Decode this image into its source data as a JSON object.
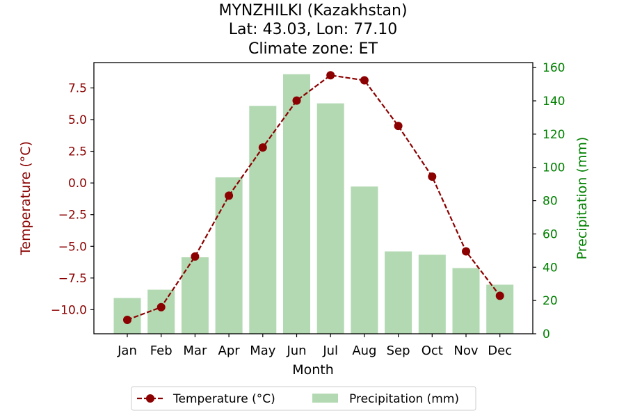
{
  "chart_data": {
    "type": "bar+line",
    "title_lines": [
      "MYNZHILKI (Kazakhstan)",
      "Lat: 43.03, Lon: 77.10",
      "Climate zone: ET"
    ],
    "xlabel": "Month",
    "categories": [
      "Jan",
      "Feb",
      "Mar",
      "Apr",
      "May",
      "Jun",
      "Jul",
      "Aug",
      "Sep",
      "Oct",
      "Nov",
      "Dec"
    ],
    "temperature": {
      "name": "Temperature (°C)",
      "axis_label": "Temperature (°C)",
      "color": "#8b0000",
      "values": [
        -10.8,
        -9.8,
        -5.8,
        -1.0,
        2.8,
        6.5,
        8.5,
        8.1,
        4.5,
        0.5,
        -5.4,
        -8.9
      ],
      "ylim": [
        -11.9,
        9.5
      ],
      "ticks": [
        -10.0,
        -7.5,
        -5.0,
        -2.5,
        0.0,
        2.5,
        5.0,
        7.5
      ],
      "tick_labels": [
        "−10.0",
        "−7.5",
        "−5.0",
        "−2.5",
        "0.0",
        "2.5",
        "5.0",
        "7.5"
      ]
    },
    "precipitation": {
      "name": "Precipitation (mm)",
      "axis_label": "Precipitation (mm)",
      "color": "#008000",
      "bar_color": "#b2d9b2",
      "values": [
        21.5,
        26.5,
        46,
        94,
        137,
        156,
        138.5,
        88.5,
        49.5,
        47.5,
        39.5,
        29.5
      ],
      "ylim": [
        0,
        163
      ],
      "ticks": [
        0,
        20,
        40,
        60,
        80,
        100,
        120,
        140,
        160
      ],
      "tick_labels": [
        "0",
        "20",
        "40",
        "60",
        "80",
        "100",
        "120",
        "140",
        "160"
      ]
    },
    "legend": {
      "position": "bottom-center",
      "items": [
        "Temperature (°C)",
        "Precipitation (mm)"
      ]
    }
  }
}
